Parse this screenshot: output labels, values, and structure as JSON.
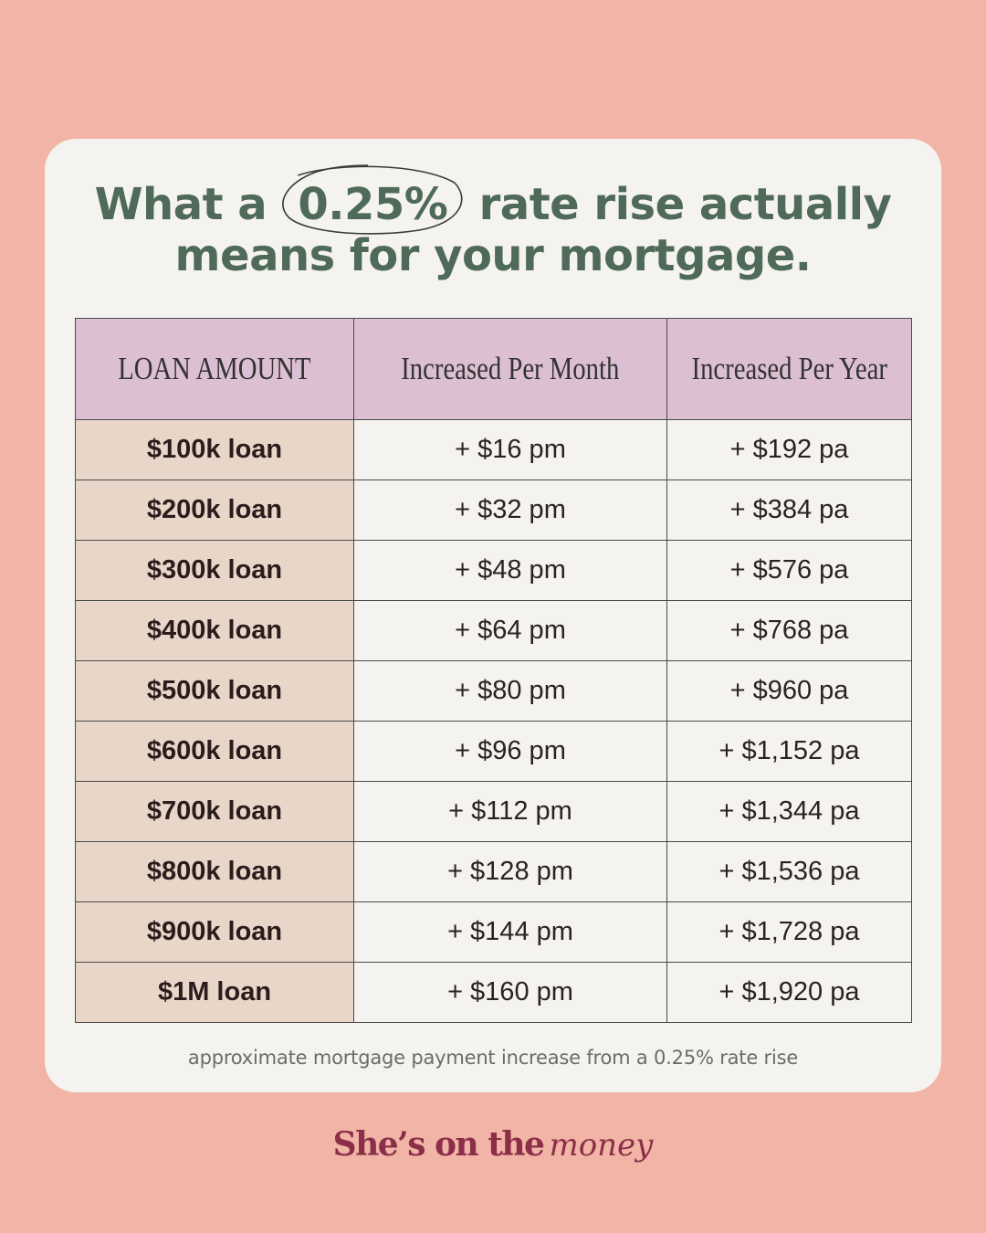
{
  "headline": {
    "line1_before": "What a",
    "highlight": "0.25%",
    "line1_after": "rate rise actually",
    "line2": "means for your mortgage."
  },
  "table": {
    "headers": [
      "LOAN AMOUNT",
      "Increased Per Month",
      "Increased Per Year"
    ],
    "rows": [
      {
        "amount": "$100k loan",
        "per_month": "+ $16 pm",
        "per_year": "+ $192 pa"
      },
      {
        "amount": "$200k loan",
        "per_month": "+ $32 pm",
        "per_year": "+ $384 pa"
      },
      {
        "amount": "$300k loan",
        "per_month": "+ $48 pm",
        "per_year": "+ $576 pa"
      },
      {
        "amount": "$400k loan",
        "per_month": "+ $64 pm",
        "per_year": "+ $768 pa"
      },
      {
        "amount": "$500k loan",
        "per_month": "+ $80 pm",
        "per_year": "+ $960 pa"
      },
      {
        "amount": "$600k loan",
        "per_month": "+ $96 pm",
        "per_year": "+ $1,152 pa"
      },
      {
        "amount": "$700k loan",
        "per_month": "+ $112 pm",
        "per_year": "+ $1,344 pa"
      },
      {
        "amount": "$800k loan",
        "per_month": "+ $128 pm",
        "per_year": "+ $1,536 pa"
      },
      {
        "amount": "$900k loan",
        "per_month": "+ $144 pm",
        "per_year": "+ $1,728 pa"
      },
      {
        "amount": "$1M loan",
        "per_month": "+ $160 pm",
        "per_year": "+ $1,920 pa"
      }
    ]
  },
  "footnote": "approximate mortgage payment increase from a 0.25% rate rise",
  "brand": {
    "main": "She’s on the",
    "script": "money"
  },
  "colors": {
    "background": "#f2b4a6",
    "card": "#f5f3ef",
    "headline": "#4f6a58",
    "header_row": "#dcbfd3",
    "amount_column": "#e8d6c8",
    "brand": "#8b2f49"
  }
}
